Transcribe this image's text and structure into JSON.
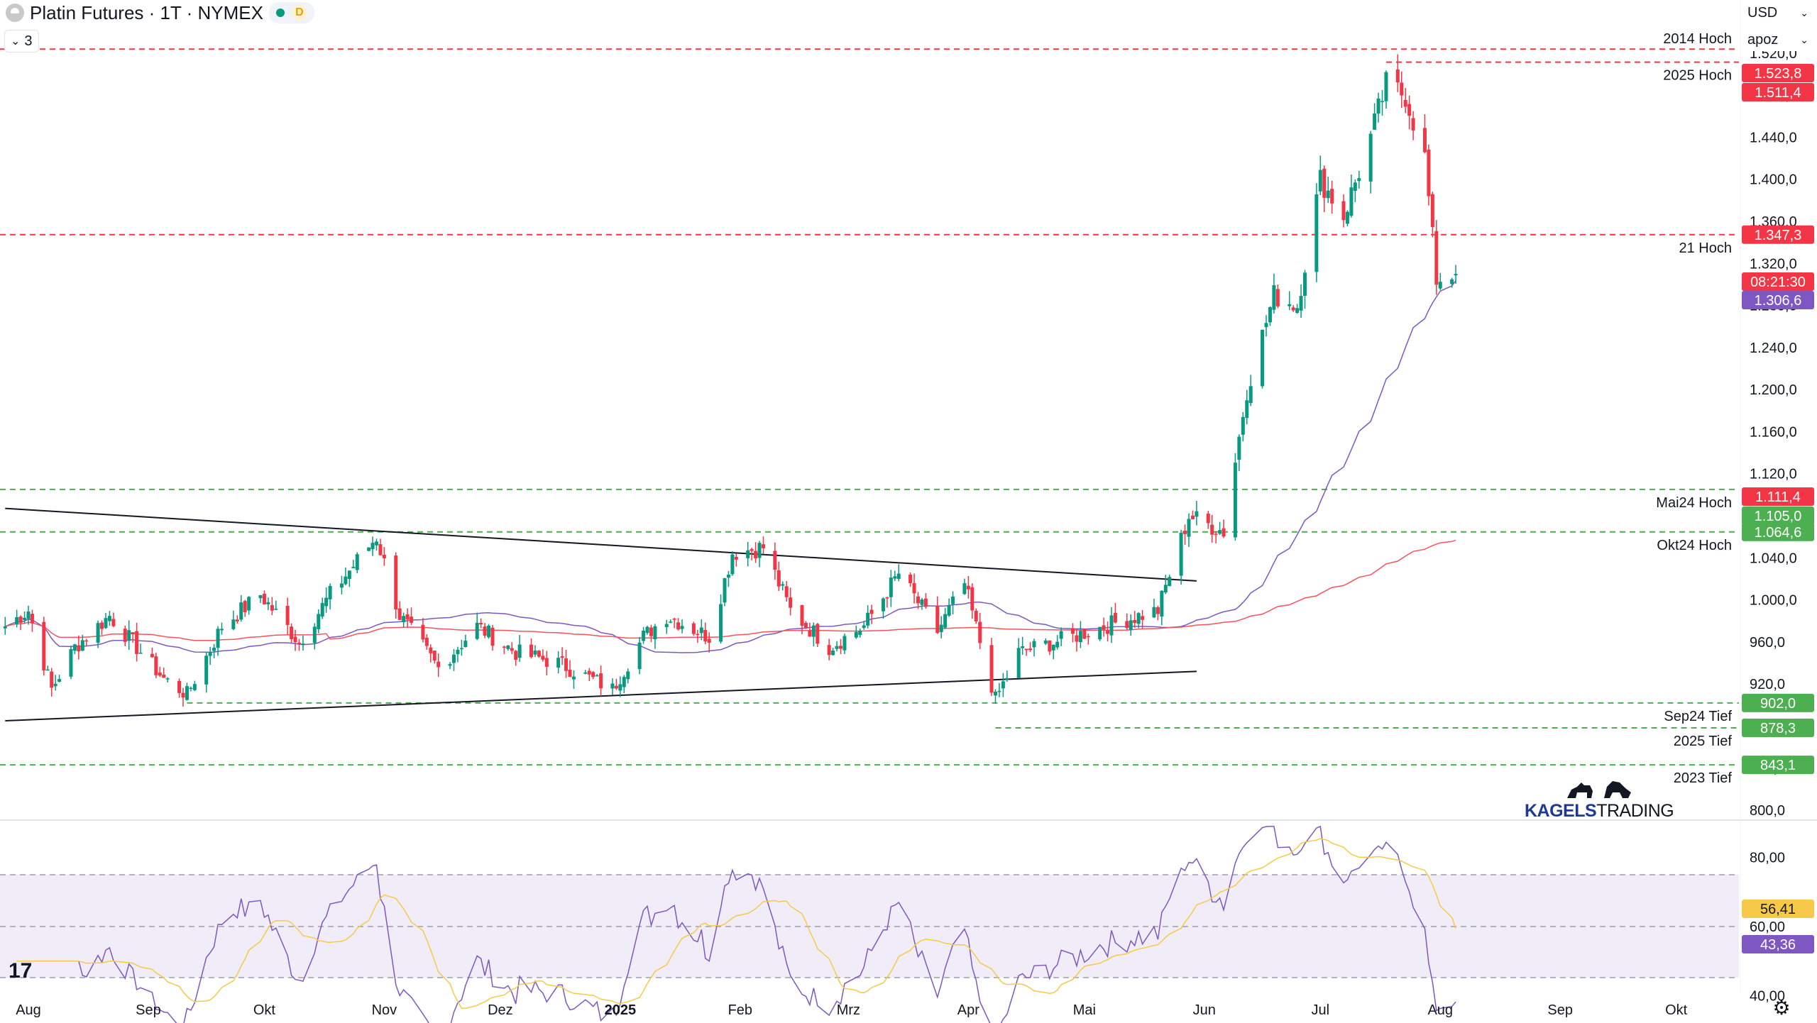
{
  "header": {
    "title": "Platin Futures · 1T · NYMEX",
    "delay_badge": "D",
    "legend_count": "3"
  },
  "controls": {
    "currency": "USD",
    "unit": "apoz"
  },
  "colors": {
    "up": "#089981",
    "down": "#f23645",
    "ma50": "#7e57c2",
    "ma200": "#f7525f",
    "rsi": "#7e57c2",
    "rsi_ma": "#f7c948",
    "resistance": "#f23645",
    "support": "#4caf50",
    "trendline": "#131722"
  },
  "logo": {
    "part1": "KAGELS",
    "part2": "TRADING"
  },
  "tv_logo": "17",
  "chart_data": {
    "type": "candlestick",
    "x_axis_labels": [
      "Aug",
      "Sep",
      "Okt",
      "Nov",
      "Dez",
      "2025",
      "Feb",
      "Mrz",
      "Apr",
      "Mai",
      "Jun",
      "Jul",
      "Aug",
      "Sep",
      "Okt"
    ],
    "y_ticks": [
      "800,0",
      "840,0",
      "880,0",
      "920,0",
      "960,0",
      "1.000,0",
      "1.040,0",
      "1.080,0",
      "1.120,0",
      "1.160,0",
      "1.200,0",
      "1.240,0",
      "1.280,0",
      "1.320,0",
      "1.360,0",
      "1.400,0",
      "1.440,0",
      "1.480,0",
      "1.520,0"
    ],
    "ylim": [
      800,
      1530
    ],
    "price_waypoints": [
      [
        "2024-07-26",
        975
      ],
      [
        "2024-08-01",
        990
      ],
      [
        "2024-08-07",
        915
      ],
      [
        "2024-08-13",
        955
      ],
      [
        "2024-08-22",
        985
      ],
      [
        "2024-09-05",
        925
      ],
      [
        "2024-09-11",
        910
      ],
      [
        "2024-09-20",
        975
      ],
      [
        "2024-09-30",
        1005
      ],
      [
        "2024-10-10",
        960
      ],
      [
        "2024-10-18",
        1005
      ],
      [
        "2024-10-30",
        1060
      ],
      [
        "2024-11-05",
        985
      ],
      [
        "2024-11-15",
        935
      ],
      [
        "2024-11-25",
        975
      ],
      [
        "2024-12-05",
        950
      ],
      [
        "2024-12-16",
        940
      ],
      [
        "2024-12-30",
        915
      ],
      [
        "2025-01-07",
        965
      ],
      [
        "2025-01-13",
        985
      ],
      [
        "2025-01-24",
        965
      ],
      [
        "2025-01-30",
        1045
      ],
      [
        "2025-02-07",
        1050
      ],
      [
        "2025-02-14",
        990
      ],
      [
        "2025-02-24",
        955
      ],
      [
        "2025-03-05",
        975
      ],
      [
        "2025-03-14",
        1025
      ],
      [
        "2025-03-24",
        970
      ],
      [
        "2025-03-31",
        1015
      ],
      [
        "2025-04-08",
        905
      ],
      [
        "2025-04-14",
        950
      ],
      [
        "2025-04-28",
        965
      ],
      [
        "2025-05-06",
        975
      ],
      [
        "2025-05-20",
        990
      ],
      [
        "2025-05-28",
        1080
      ],
      [
        "2025-06-06",
        1065
      ],
      [
        "2025-06-12",
        1200
      ],
      [
        "2025-06-19",
        1290
      ],
      [
        "2025-06-25",
        1280
      ],
      [
        "2025-07-01",
        1400
      ],
      [
        "2025-07-07",
        1365
      ],
      [
        "2025-07-14",
        1440
      ],
      [
        "2025-07-18",
        1490
      ],
      [
        "2025-07-23",
        1480
      ],
      [
        "2025-07-28",
        1420
      ],
      [
        "2025-07-31",
        1305
      ],
      [
        "2025-08-05",
        1310
      ]
    ],
    "last_price": "1.306,6",
    "countdown": "08:21:30",
    "horizontal_levels": [
      {
        "label": "2014 Hoch",
        "price": 1523.8,
        "price_label": "1.523,8",
        "kind": "resistance"
      },
      {
        "label": "2025 Hoch",
        "price": 1511.4,
        "price_label": "1.511,4",
        "kind": "resistance"
      },
      {
        "label": "21 Hoch",
        "price": 1347.3,
        "price_label": "1.347,3",
        "kind": "resistance"
      },
      {
        "label": "Mai24 Hoch",
        "price": 1105.0,
        "price_label": "1.105,0",
        "kind": "support"
      },
      {
        "label": "",
        "price": 1111.4,
        "price_label": "1.111,4",
        "kind": "resistance_label_only"
      },
      {
        "label": "Okt24 Hoch",
        "price": 1064.6,
        "price_label": "1.064,6",
        "kind": "support"
      },
      {
        "label": "Sep24 Tief",
        "price": 902.0,
        "price_label": "902,0",
        "kind": "support"
      },
      {
        "label": "2025 Tief",
        "price": 878.3,
        "price_label": "878,3",
        "kind": "support"
      },
      {
        "label": "2023 Tief",
        "price": 843.1,
        "price_label": "843,1",
        "kind": "support"
      }
    ],
    "trendlines": [
      {
        "from": [
          "2024-07-26",
          1087
        ],
        "to": [
          "2025-05-30",
          1018
        ]
      },
      {
        "from": [
          "2024-07-26",
          885
        ],
        "to": [
          "2025-05-30",
          932
        ]
      }
    ],
    "rsi": {
      "y_ticks": [
        "40,00",
        "60,00",
        "80,00"
      ],
      "ylim": [
        30,
        90
      ],
      "band": [
        30,
        70
      ],
      "value_rsi": "43,36",
      "value_ma": "56,41"
    }
  }
}
